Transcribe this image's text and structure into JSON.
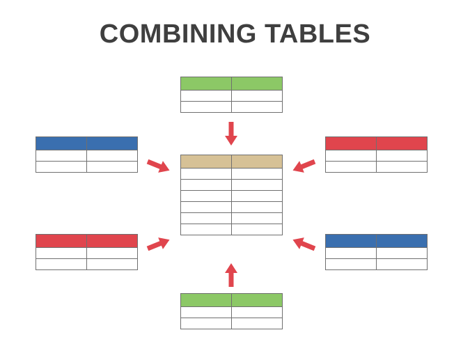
{
  "title": "COMBINING TABLES",
  "colors": {
    "green": "#8cc866",
    "blue": "#3a6faf",
    "red": "#e0454d",
    "tan": "#d6c196",
    "arrow": "#e0454d",
    "grid": "#6f6f6f"
  },
  "tables": [
    {
      "name": "table-top-green",
      "header_color": "green",
      "data_rows": 2
    },
    {
      "name": "table-left-blue",
      "header_color": "blue",
      "data_rows": 2
    },
    {
      "name": "table-right-red",
      "header_color": "red",
      "data_rows": 2
    },
    {
      "name": "table-center-combined",
      "header_color": "tan",
      "data_rows": 6
    },
    {
      "name": "table-left-red",
      "header_color": "red",
      "data_rows": 2
    },
    {
      "name": "table-right-blue",
      "header_color": "blue",
      "data_rows": 2
    },
    {
      "name": "table-bottom-green",
      "header_color": "green",
      "data_rows": 2
    }
  ],
  "arrows": [
    {
      "name": "arrow-from-top",
      "direction": "down"
    },
    {
      "name": "arrow-from-bottom",
      "direction": "up"
    },
    {
      "name": "arrow-from-left-top",
      "direction": "down-right"
    },
    {
      "name": "arrow-from-right-top",
      "direction": "down-left"
    },
    {
      "name": "arrow-from-left-bottom",
      "direction": "up-right"
    },
    {
      "name": "arrow-from-right-bottom",
      "direction": "up-left"
    }
  ]
}
